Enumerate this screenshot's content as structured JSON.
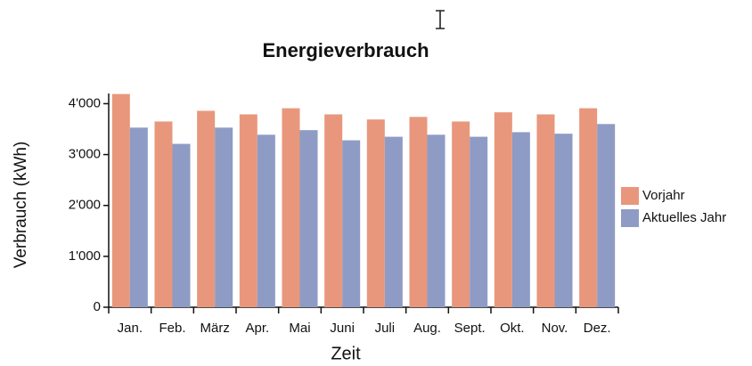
{
  "chart_data": {
    "type": "bar",
    "title": "Energieverbrauch",
    "x_label": "Zeit",
    "y_label": "Verbrauch (kWh)",
    "categories": [
      "Jan.",
      "Feb.",
      "März",
      "Apr.",
      "Mai",
      "Juni",
      "Juli",
      "Aug.",
      "Sept.",
      "Okt.",
      "Nov.",
      "Dez."
    ],
    "series": [
      {
        "name": "Vorjahr",
        "color": "#e8977c",
        "values": [
          4190,
          3650,
          3860,
          3790,
          3910,
          3790,
          3690,
          3740,
          3650,
          3830,
          3790,
          3910
        ]
      },
      {
        "name": "Aktuelles Jahr",
        "color": "#8e9bc5",
        "values": [
          3530,
          3210,
          3530,
          3390,
          3480,
          3280,
          3350,
          3390,
          3350,
          3440,
          3410,
          3600
        ]
      }
    ],
    "ylim": [
      0,
      4200
    ],
    "yticks": [
      0,
      {
        "value": 1000,
        "label": "1'000"
      },
      {
        "value": 2000,
        "label": "2'000"
      },
      {
        "value": 3000,
        "label": "3'000"
      },
      {
        "value": 4000,
        "label": "4'000"
      }
    ],
    "legend": "right"
  }
}
